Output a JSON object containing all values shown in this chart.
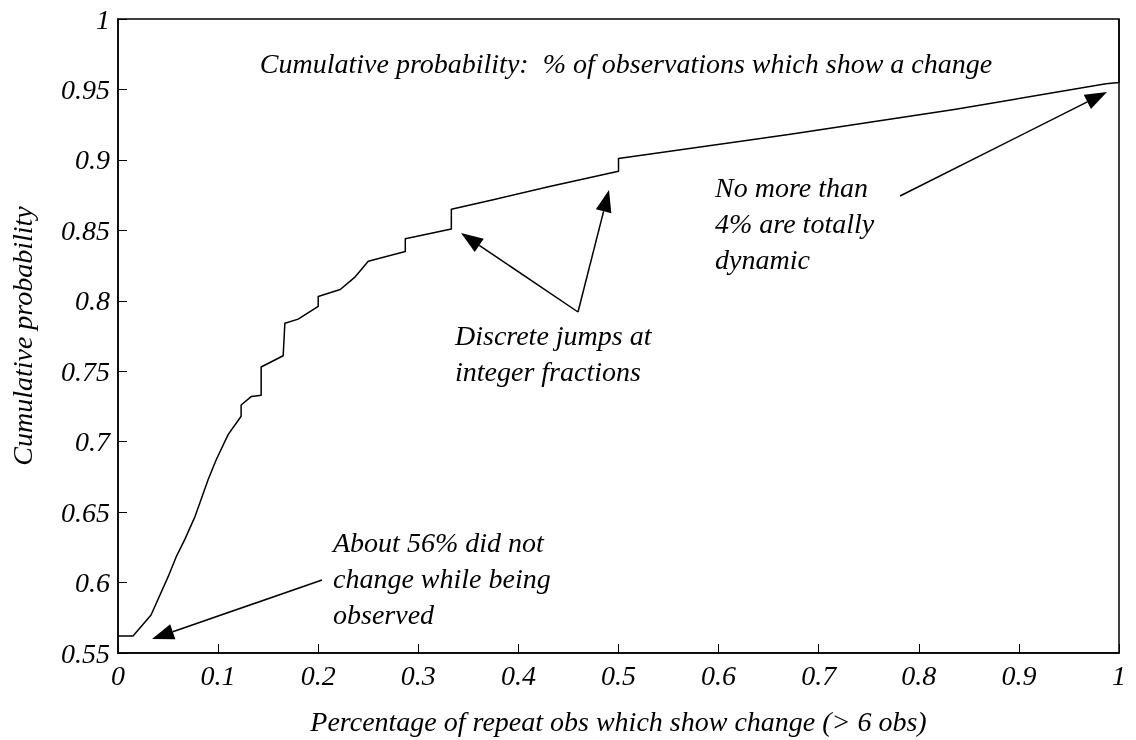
{
  "chart_data": {
    "type": "line",
    "title": "Cumulative probability:  % of observations which show a change",
    "xlabel": "Percentage of repeat obs which show change (> 6 obs)",
    "ylabel": "Cumulative probability",
    "x": [
      0,
      0.015,
      0.033,
      0.05,
      0.058,
      0.067,
      0.077,
      0.083,
      0.09,
      0.098,
      0.11,
      0.123,
      0.123,
      0.133,
      0.143,
      0.143,
      0.165,
      0.1667,
      0.18,
      0.2,
      0.2,
      0.222,
      0.237,
      0.25,
      0.287,
      0.287,
      0.333,
      0.333,
      0.377,
      0.43,
      0.5,
      0.5,
      0.67,
      0.837,
      0.987,
      1,
      1
    ],
    "values": [
      0.562,
      0.562,
      0.577,
      0.604,
      0.618,
      0.631,
      0.647,
      0.659,
      0.673,
      0.687,
      0.705,
      0.718,
      0.726,
      0.732,
      0.733,
      0.753,
      0.761,
      0.784,
      0.787,
      0.796,
      0.803,
      0.808,
      0.817,
      0.828,
      0.835,
      0.844,
      0.851,
      0.865,
      0.872,
      0.881,
      0.892,
      0.901,
      0.918,
      0.936,
      0.954,
      0.955,
      1
    ],
    "color": "#000000",
    "xlim": [
      0,
      1
    ],
    "xticks": [
      0,
      0.1,
      0.2,
      0.3,
      0.4,
      0.5,
      0.6,
      0.7,
      0.8,
      0.9,
      1
    ],
    "ylim": [
      0.55,
      1
    ],
    "yticks": [
      0.55,
      0.6,
      0.65,
      0.7,
      0.75,
      0.8,
      0.85,
      0.9,
      0.95,
      1
    ],
    "marker": "none",
    "line_style": "solid",
    "annotations": [
      "About 56% did not\nchange while being\nobserved",
      "Discrete jumps at\ninteger fractions",
      "No more than\n4% are totally\ndynamic"
    ]
  }
}
